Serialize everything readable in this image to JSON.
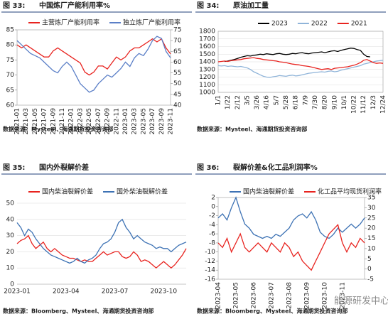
{
  "watermark": "能源研发中心",
  "chart_data": [
    {
      "type": "line",
      "label": "图 33:",
      "title": "中国炼厂产能利用率%",
      "source": "数据来源：Mysteel、海通期货投资咨询部",
      "categories": [
        "2021-01",
        null,
        "2021-03",
        null,
        "2021-05",
        null,
        "2021-07",
        null,
        "2021-09",
        null,
        "2021-11",
        null,
        "2022-01",
        null,
        "2022-03",
        null,
        "2022-05",
        null,
        "2022-07",
        null,
        "2022-09",
        null,
        "2022-11",
        null,
        "2023-01",
        null,
        "2023-03",
        null,
        "2023-05",
        null,
        "2023-07",
        null,
        "2023-09",
        null,
        "2023-11"
      ],
      "ylim": [
        60,
        85
      ],
      "yticks": [
        60,
        65,
        70,
        75,
        80,
        85
      ],
      "y2lim": [
        40,
        75
      ],
      "y2ticks": [
        40,
        45,
        50,
        55,
        60,
        65,
        70,
        75
      ],
      "frame": true,
      "grid": false,
      "rotate_labels": true,
      "series": [
        {
          "name": "主营炼厂产能利用率",
          "color": "#e8231f",
          "values": [
            80,
            79,
            80,
            79,
            78,
            77,
            76,
            76,
            78,
            79,
            78,
            77,
            76,
            75,
            74,
            71,
            70,
            71,
            73,
            73,
            72,
            74,
            76,
            75,
            76,
            78,
            79,
            79,
            80,
            81,
            82,
            81,
            82,
            79,
            77
          ]
        },
        {
          "name": "独立炼厂产能利用率",
          "color": "#5b7fc7",
          "axis": "y2",
          "values": [
            70,
            68,
            66,
            64,
            63,
            62,
            60,
            58,
            56,
            55,
            58,
            60,
            58,
            54,
            50,
            48,
            46,
            47,
            50,
            52,
            54,
            53,
            55,
            57,
            60,
            58,
            62,
            64,
            63,
            66,
            70,
            72,
            71,
            65,
            62
          ]
        }
      ]
    },
    {
      "type": "line",
      "label": "图 34:",
      "title": "原油加工量",
      "source": "数据来源：Mysteel、海通期货投资咨询部",
      "categories": [
        "1/1",
        null,
        null,
        "1/22",
        null,
        null,
        "2/12",
        null,
        null,
        "3/5",
        null,
        null,
        "3/26",
        null,
        null,
        "4/16",
        null,
        null,
        "5/7",
        null,
        null,
        "5/28",
        null,
        null,
        "6/18",
        null,
        null,
        "7/9",
        null,
        null,
        "7/30",
        null,
        null,
        "8/20",
        null,
        null,
        "9/10",
        null,
        null,
        "10/1",
        null,
        null,
        "10/22",
        null,
        null,
        "11/12",
        null,
        null,
        "12/3",
        null,
        null,
        "12/24"
      ],
      "ylim": [
        1000,
        1800
      ],
      "yticks": [
        1000,
        1100,
        1200,
        1300,
        1400,
        1500,
        1600,
        1700,
        1800
      ],
      "frame": true,
      "grid": true,
      "rotate_labels": true,
      "series": [
        {
          "name": "2023",
          "color": "#000000",
          "values": [
            null,
            null,
            1405,
            1410,
            1420,
            1430,
            1445,
            1460,
            1470,
            1480,
            1475,
            1485,
            1490,
            1500,
            1495,
            1505,
            1500,
            1495,
            1505,
            1510,
            1500,
            1495,
            1500,
            1510,
            1505,
            1515,
            1520,
            1510,
            1505,
            1515,
            1520,
            1525,
            1530,
            1520,
            1530,
            1540,
            1545,
            1535,
            1550,
            1560,
            1570,
            1580,
            1575,
            1560,
            1550,
            1500,
            1470,
            1465,
            null,
            null,
            null,
            null
          ]
        },
        {
          "name": "2022",
          "color": "#8fb4d9",
          "values": [
            1350,
            1345,
            1350,
            1340,
            1345,
            1340,
            1335,
            1340,
            1330,
            1320,
            1300,
            1270,
            1250,
            1230,
            1210,
            1200,
            1195,
            1205,
            1210,
            1220,
            1215,
            1210,
            1220,
            1225,
            1215,
            1220,
            1230,
            1240,
            1250,
            1255,
            1260,
            1265,
            1270,
            1265,
            1275,
            1280,
            1270,
            1275,
            1290,
            1300,
            1310,
            1320,
            1330,
            1340,
            1350,
            1370,
            1380,
            1390,
            1400,
            1410,
            1415,
            1420
          ]
        },
        {
          "name": "2021",
          "color": "#e8231f",
          "values": [
            1400,
            1405,
            1410,
            1405,
            1415,
            1420,
            1425,
            1430,
            1440,
            1445,
            1450,
            1455,
            1445,
            1440,
            1430,
            1425,
            1420,
            1415,
            1410,
            1400,
            1395,
            1390,
            1380,
            1370,
            1365,
            1360,
            1350,
            1345,
            1340,
            1330,
            1320,
            1310,
            1300,
            1305,
            1310,
            1300,
            1315,
            1320,
            1325,
            1330,
            1335,
            1345,
            1355,
            1370,
            1390,
            1420,
            1430,
            1410,
            1390,
            1380,
            1385,
            1380
          ]
        }
      ]
    },
    {
      "type": "line",
      "label": "图 35:",
      "title": "国内外裂解价差",
      "source": "数据来源：Bloomberg、Mysteel、海通期货投资咨询部",
      "categories": [
        "2023-01",
        null,
        null,
        null,
        null,
        null,
        null,
        null,
        null,
        null,
        null,
        null,
        null,
        "2023-04",
        null,
        null,
        null,
        null,
        null,
        null,
        null,
        null,
        null,
        null,
        null,
        null,
        "2023-07",
        null,
        null,
        null,
        null,
        null,
        null,
        null,
        null,
        null,
        null,
        null,
        null,
        "2023-10",
        null,
        null,
        null,
        null,
        null,
        null
      ],
      "ylim": [
        0,
        50
      ],
      "yticks": [
        0,
        10,
        20,
        30,
        40,
        50
      ],
      "frame": false,
      "grid": true,
      "rotate_labels": false,
      "series": [
        {
          "name": "国内柴油裂解价差",
          "color": "#e8231f",
          "values": [
            25,
            27,
            28,
            30,
            25,
            22,
            24,
            26,
            22,
            20,
            22,
            20,
            18,
            17,
            16,
            16,
            15,
            14,
            15,
            14,
            14,
            16,
            18,
            20,
            18,
            19,
            20,
            20,
            17,
            16,
            17,
            20,
            18,
            14,
            15,
            14,
            12,
            10,
            12,
            14,
            12,
            10,
            12,
            15,
            18,
            22
          ]
        },
        {
          "name": "国外柴油裂解价差",
          "color": "#3d72b4",
          "values": [
            38,
            35,
            30,
            34,
            32,
            28,
            25,
            22,
            20,
            18,
            17,
            16,
            15,
            14,
            13,
            14,
            16,
            14,
            13,
            15,
            16,
            18,
            22,
            25,
            26,
            28,
            32,
            38,
            40,
            35,
            32,
            28,
            30,
            28,
            26,
            25,
            24,
            22,
            23,
            22,
            22,
            20,
            22,
            24,
            25,
            26
          ]
        }
      ]
    },
    {
      "type": "line",
      "label": "图 36:",
      "title": "裂解价差&化工品利润率%",
      "source": "数据来源：Bloomberg、Mysteel、海通期货投资咨询部",
      "categories": [
        "2023-04",
        null,
        null,
        null,
        "2023-05",
        null,
        null,
        null,
        "2023-06",
        null,
        null,
        null,
        "2023-07",
        null,
        null,
        null,
        "2023-08",
        null,
        null,
        null,
        "2023-09",
        null,
        null,
        null,
        "2023-10",
        null,
        null,
        null,
        "2023-11",
        null,
        null,
        null,
        null,
        null
      ],
      "ylim": [
        -16,
        2
      ],
      "yticks": [
        -16,
        -14,
        -12,
        -10,
        -8,
        -6,
        -4,
        -2,
        0,
        2
      ],
      "y2lim": [
        -5,
        35
      ],
      "y2ticks": [
        -5,
        0,
        5,
        10,
        15,
        20,
        25,
        30,
        35
      ],
      "frame": true,
      "grid": false,
      "rotate_labels": true,
      "series": [
        {
          "name": "国内柴油裂解价差",
          "color": "#3d72b4",
          "axis": "y2",
          "values": [
            25,
            27,
            24,
            30,
            35,
            28,
            22,
            20,
            17,
            16,
            15,
            16,
            15,
            17,
            16,
            18,
            20,
            24,
            26,
            27,
            25,
            28,
            24,
            18,
            16,
            15,
            17,
            20,
            18,
            20,
            22,
            20,
            22,
            25
          ]
        },
        {
          "name": "化工品平均现货利润率",
          "color": "#e8231f",
          "values": [
            -8,
            -9,
            -7,
            -10,
            -8,
            -6,
            -9,
            -10,
            -9,
            -8,
            -9,
            -10,
            -8,
            -9,
            -10,
            -8,
            -9,
            -11,
            -10,
            -12,
            -13,
            -14,
            -12,
            -10,
            -8,
            -6,
            -5,
            -4,
            -8,
            -10,
            -8,
            -9,
            -7,
            -8
          ]
        }
      ]
    }
  ]
}
